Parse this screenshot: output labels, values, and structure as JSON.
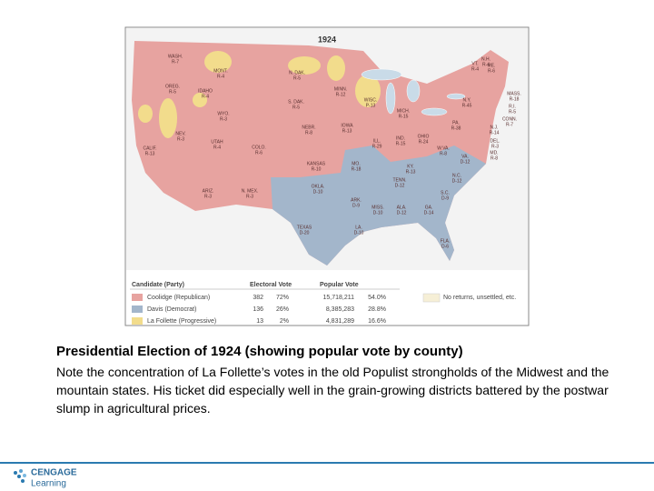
{
  "map": {
    "title": "1924",
    "states": [
      {
        "name": "WASH.",
        "votes": "R-7"
      },
      {
        "name": "OREG.",
        "votes": "R-5"
      },
      {
        "name": "CALIF.",
        "votes": "R-13"
      },
      {
        "name": "NEV.",
        "votes": "R-3"
      },
      {
        "name": "IDAHO",
        "votes": "R-4"
      },
      {
        "name": "MONT.",
        "votes": "R-4"
      },
      {
        "name": "WYO.",
        "votes": "R-3"
      },
      {
        "name": "UTAH",
        "votes": "R-4"
      },
      {
        "name": "COLO.",
        "votes": "R-6"
      },
      {
        "name": "ARIZ.",
        "votes": "R-3"
      },
      {
        "name": "N. MEX.",
        "votes": "R-3"
      },
      {
        "name": "N. DAK.",
        "votes": "R-5"
      },
      {
        "name": "S. DAK.",
        "votes": "R-5"
      },
      {
        "name": "NEBR.",
        "votes": "R-8"
      },
      {
        "name": "KANSAS",
        "votes": "R-10"
      },
      {
        "name": "OKLA.",
        "votes": "D-10"
      },
      {
        "name": "TEXAS",
        "votes": "D-20"
      },
      {
        "name": "MINN.",
        "votes": "R-12"
      },
      {
        "name": "IOWA",
        "votes": "R-13"
      },
      {
        "name": "MO.",
        "votes": "R-18"
      },
      {
        "name": "ARK.",
        "votes": "D-9"
      },
      {
        "name": "LA.",
        "votes": "D-10"
      },
      {
        "name": "WISC.",
        "votes": "P-13"
      },
      {
        "name": "ILL.",
        "votes": "R-29"
      },
      {
        "name": "MICH.",
        "votes": "R-15"
      },
      {
        "name": "IND.",
        "votes": "R-15"
      },
      {
        "name": "OHIO",
        "votes": "R-24"
      },
      {
        "name": "KY.",
        "votes": "R-13"
      },
      {
        "name": "TENN.",
        "votes": "D-12"
      },
      {
        "name": "MISS.",
        "votes": "D-10"
      },
      {
        "name": "ALA.",
        "votes": "D-12"
      },
      {
        "name": "GA.",
        "votes": "D-14"
      },
      {
        "name": "FLA.",
        "votes": "D-6"
      },
      {
        "name": "S.C.",
        "votes": "D-9"
      },
      {
        "name": "N.C.",
        "votes": "D-12"
      },
      {
        "name": "VA.",
        "votes": "D-12"
      },
      {
        "name": "W.VA.",
        "votes": "R-8"
      },
      {
        "name": "PA.",
        "votes": "R-38"
      },
      {
        "name": "N.Y.",
        "votes": "R-45"
      },
      {
        "name": "VT.",
        "votes": "R-4"
      },
      {
        "name": "N.H.",
        "votes": "R-4"
      },
      {
        "name": "ME.",
        "votes": "R-6"
      },
      {
        "name": "MASS.",
        "votes": "R-18"
      },
      {
        "name": "R.I.",
        "votes": "R-5"
      },
      {
        "name": "CONN.",
        "votes": "R-7"
      },
      {
        "name": "N.J.",
        "votes": "R-14"
      },
      {
        "name": "DEL.",
        "votes": "R-3"
      },
      {
        "name": "MD.",
        "votes": "R-8"
      }
    ],
    "legend": {
      "headers": [
        "Candidate (Party)",
        "Electoral Vote",
        "Popular Vote"
      ],
      "rows": [
        {
          "candidate": "Coolidge (Republican)",
          "color": "#e7a3a0",
          "electoral": "382",
          "electoral_pct": "72%",
          "popular": "15,718,211",
          "popular_pct": "54.0%"
        },
        {
          "candidate": "Davis (Democrat)",
          "color": "#a3b6cb",
          "electoral": "136",
          "electoral_pct": "26%",
          "popular": "8,385,283",
          "popular_pct": "28.8%"
        },
        {
          "candidate": "La Follette (Progressive)",
          "color": "#f2dc8c",
          "electoral": "13",
          "electoral_pct": "2%",
          "popular": "4,831,289",
          "popular_pct": "16.6%"
        }
      ],
      "no_returns": {
        "label": "No returns, unsettled, etc.",
        "color": "#f6efd6"
      }
    }
  },
  "caption": {
    "title": "Presidential Election of 1924 (showing popular vote by county)",
    "body": "Note the concentration of La Follette’s votes in the old Populist strongholds of the Midwest and the mountain states. His ticket did especially well in the grain-growing districts battered by the postwar slump in agricultural prices."
  },
  "logo": {
    "line1": "CENGAGE",
    "line2": "Learning"
  }
}
